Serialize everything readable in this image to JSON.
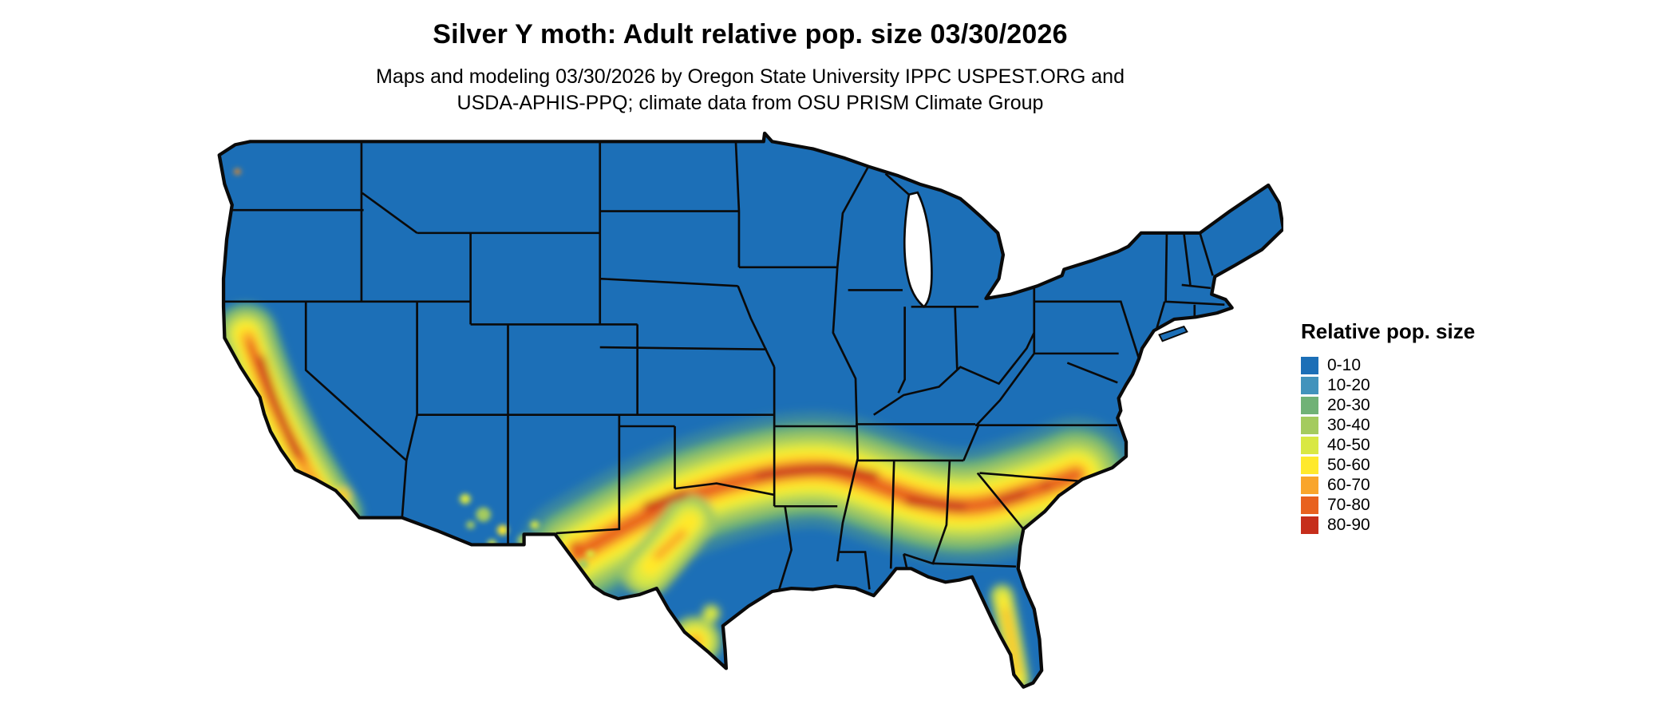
{
  "header": {
    "title": "Silver Y moth: Adult relative pop. size 03/30/2026",
    "subtitle_line1": "Maps and modeling 03/30/2026 by Oregon State University IPPC USPEST.ORG and",
    "subtitle_line2": "USDA-APHIS-PPQ; climate data from OSU PRISM Climate Group"
  },
  "legend": {
    "title": "Relative pop. size",
    "items": [
      {
        "label": "0-10",
        "color": "#1C6FB7"
      },
      {
        "label": "10-20",
        "color": "#4293BC"
      },
      {
        "label": "20-30",
        "color": "#70B276"
      },
      {
        "label": "30-40",
        "color": "#A4CB5E"
      },
      {
        "label": "40-50",
        "color": "#D9E843"
      },
      {
        "label": "50-60",
        "color": "#FFE92C"
      },
      {
        "label": "60-70",
        "color": "#F9A52B"
      },
      {
        "label": "70-80",
        "color": "#E8611F"
      },
      {
        "label": "80-90",
        "color": "#C62E1B"
      }
    ]
  },
  "map": {
    "base_class_color": "#1C6FB7",
    "boundary_color": "#0A0A0A",
    "background_color": "#FFFFFF"
  }
}
